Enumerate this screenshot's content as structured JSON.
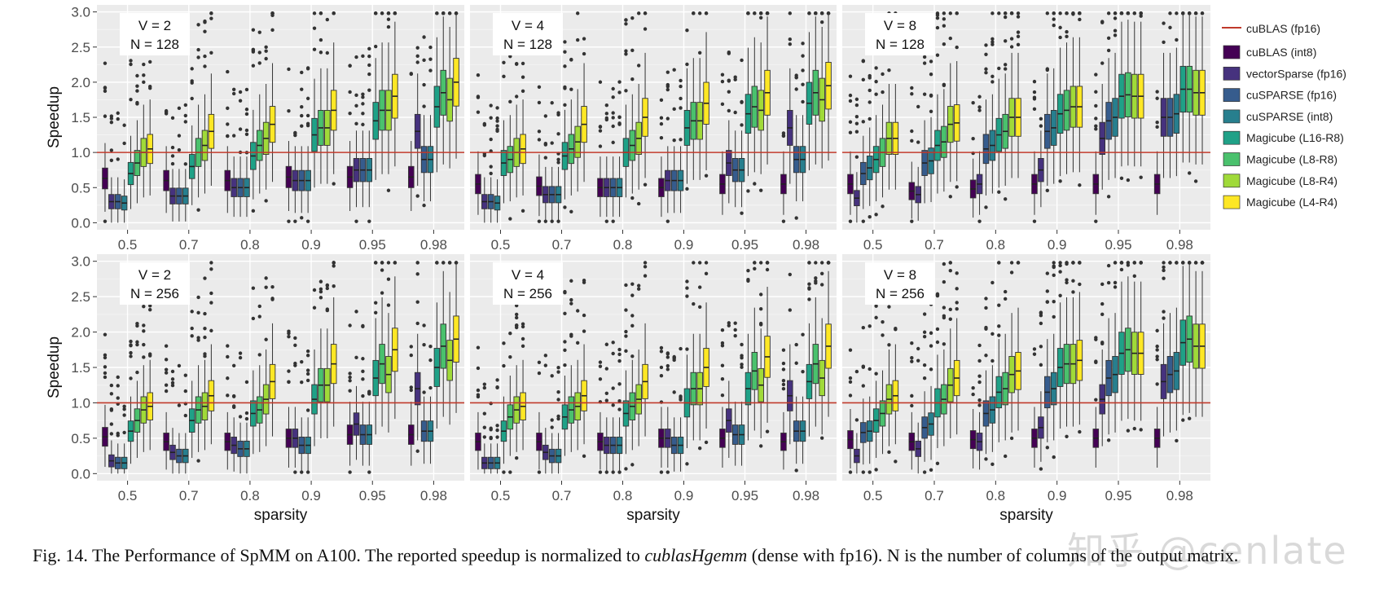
{
  "figure": {
    "caption_prefix": "Fig. 14.  The Performance of SpMM on A100. The reported speedup is normalized to ",
    "caption_italic": "cublasHgemm",
    "caption_suffix": " (dense with fp16). N is the number of columns of the output matrix.",
    "watermark": "知乎 @cenlate"
  },
  "legend": {
    "line_entry": {
      "label": "cuBLAS (fp16)",
      "color": "#c0392b"
    },
    "box_entries": [
      {
        "label": "cuBLAS (int8)",
        "color": "#440154"
      },
      {
        "label": "vectorSparse (fp16)",
        "color": "#46327e"
      },
      {
        "label": "cuSPARSE (fp16)",
        "color": "#365c8d"
      },
      {
        "label": "cuSPARSE (int8)",
        "color": "#277f8e"
      },
      {
        "label": "Magicube (L16-R8)",
        "color": "#1fa187"
      },
      {
        "label": "Magicube (L8-R8)",
        "color": "#4ac16d"
      },
      {
        "label": "Magicube (L8-R4)",
        "color": "#a0da39"
      },
      {
        "label": "Magicube (L4-R4)",
        "color": "#fde725"
      }
    ]
  },
  "chart_data": {
    "type": "boxplot",
    "ylabel": "Speedup",
    "xlabel": "sparsity",
    "categories": [
      "0.5",
      "0.7",
      "0.8",
      "0.9",
      "0.95",
      "0.98"
    ],
    "yticks": [
      "0.0",
      "0.5",
      "1.0",
      "1.5",
      "2.0",
      "2.5",
      "3.0"
    ],
    "ylim": [
      -0.1,
      3.1
    ],
    "reference_line": 1.0,
    "series": [
      "cuBLAS (int8)",
      "vectorSparse (fp16)",
      "cuSPARSE (fp16)",
      "cuSPARSE (int8)",
      "Magicube (L16-R8)",
      "Magicube (L8-R8)",
      "Magicube (L8-R4)",
      "Magicube (L4-R4)"
    ],
    "box_stats_order": [
      "whisker_low",
      "q1",
      "median",
      "q3",
      "whisker_high"
    ],
    "panels": [
      {
        "label_v": "V = 2",
        "label_n": "N = 128",
        "medians": [
          [
            0.63,
            0.3,
            0.3,
            0.28,
            0.7,
            0.85,
            1.0,
            1.05
          ],
          [
            0.6,
            0.38,
            0.38,
            0.38,
            0.8,
            1.0,
            1.1,
            1.3
          ],
          [
            0.6,
            0.5,
            0.5,
            0.5,
            0.95,
            1.1,
            1.2,
            1.4
          ],
          [
            0.65,
            0.6,
            0.6,
            0.6,
            1.25,
            1.35,
            1.35,
            1.6
          ],
          [
            0.65,
            0.75,
            0.75,
            0.75,
            1.45,
            1.6,
            1.6,
            1.8
          ],
          [
            0.65,
            1.3,
            0.9,
            0.9,
            1.65,
            1.85,
            1.75,
            2.0
          ]
        ]
      },
      {
        "label_v": "V = 4",
        "label_n": "N = 128",
        "medians": [
          [
            0.55,
            0.3,
            0.3,
            0.28,
            0.85,
            0.9,
            1.0,
            1.05
          ],
          [
            0.52,
            0.4,
            0.4,
            0.4,
            0.95,
            1.05,
            1.15,
            1.4
          ],
          [
            0.5,
            0.5,
            0.5,
            0.5,
            1.0,
            1.1,
            1.2,
            1.5
          ],
          [
            0.5,
            0.6,
            0.6,
            0.6,
            1.35,
            1.45,
            1.45,
            1.7
          ],
          [
            0.55,
            0.85,
            0.75,
            0.75,
            1.55,
            1.65,
            1.6,
            1.85
          ],
          [
            0.55,
            1.35,
            0.9,
            0.9,
            1.7,
            1.85,
            1.75,
            1.95
          ]
        ]
      },
      {
        "label_v": "V = 8",
        "label_n": "N = 128",
        "medians": [
          [
            0.55,
            0.35,
            0.7,
            0.78,
            0.9,
            1.0,
            1.2,
            1.2
          ],
          [
            0.45,
            0.4,
            0.85,
            0.88,
            1.1,
            1.15,
            1.4,
            1.42
          ],
          [
            0.48,
            0.55,
            1.05,
            1.1,
            1.25,
            1.3,
            1.5,
            1.5
          ],
          [
            0.55,
            0.75,
            1.3,
            1.35,
            1.55,
            1.6,
            1.65,
            1.65
          ],
          [
            0.55,
            1.2,
            1.45,
            1.5,
            1.8,
            1.82,
            1.8,
            1.8
          ],
          [
            0.55,
            1.5,
            1.5,
            1.55,
            1.9,
            1.9,
            1.85,
            1.85
          ]
        ]
      },
      {
        "label_v": "V = 2",
        "label_n": "N = 256",
        "medians": [
          [
            0.52,
            0.18,
            0.15,
            0.15,
            0.6,
            0.75,
            0.9,
            0.95
          ],
          [
            0.45,
            0.3,
            0.25,
            0.25,
            0.75,
            0.9,
            0.95,
            1.1
          ],
          [
            0.45,
            0.4,
            0.35,
            0.35,
            0.85,
            0.9,
            1.05,
            1.3
          ],
          [
            0.5,
            0.5,
            0.4,
            0.4,
            1.05,
            1.25,
            1.25,
            1.55
          ],
          [
            0.55,
            0.7,
            0.55,
            0.55,
            1.35,
            1.55,
            1.4,
            1.75
          ],
          [
            0.55,
            1.2,
            0.6,
            0.6,
            1.5,
            1.8,
            1.6,
            1.9
          ]
        ]
      },
      {
        "label_v": "V = 4",
        "label_n": "N = 256",
        "medians": [
          [
            0.45,
            0.15,
            0.15,
            0.15,
            0.6,
            0.8,
            0.9,
            0.95
          ],
          [
            0.45,
            0.3,
            0.25,
            0.25,
            0.8,
            0.9,
            0.95,
            1.1
          ],
          [
            0.45,
            0.4,
            0.4,
            0.4,
            0.85,
            0.95,
            1.05,
            1.3
          ],
          [
            0.5,
            0.5,
            0.4,
            0.4,
            1.0,
            1.2,
            1.2,
            1.5
          ],
          [
            0.5,
            0.75,
            0.55,
            0.55,
            1.2,
            1.45,
            1.25,
            1.65
          ],
          [
            0.45,
            1.1,
            0.6,
            0.6,
            1.3,
            1.55,
            1.35,
            1.8
          ]
        ]
      },
      {
        "label_v": "V = 8",
        "label_n": "N = 256",
        "medians": [
          [
            0.48,
            0.25,
            0.58,
            0.6,
            0.75,
            0.85,
            1.05,
            1.1
          ],
          [
            0.45,
            0.35,
            0.65,
            0.7,
            1.0,
            1.05,
            1.25,
            1.35
          ],
          [
            0.48,
            0.45,
            0.85,
            0.9,
            1.15,
            1.2,
            1.4,
            1.45
          ],
          [
            0.5,
            0.65,
            1.15,
            1.2,
            1.5,
            1.55,
            1.55,
            1.6
          ],
          [
            0.5,
            1.05,
            1.35,
            1.4,
            1.7,
            1.75,
            1.7,
            1.7
          ],
          [
            0.5,
            1.3,
            1.4,
            1.45,
            1.85,
            1.9,
            1.8,
            1.8
          ]
        ]
      }
    ]
  }
}
